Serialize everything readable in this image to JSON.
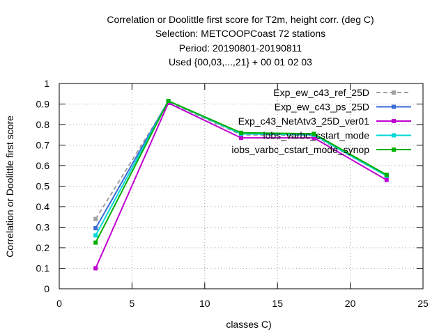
{
  "chart_data": {
    "type": "line",
    "title": [
      "Correlation or Doolittle first score  for T2m, height corr. (deg C)",
      "Selection: METCOOPCoast     72 stations",
      "Period: 20190801-20190811",
      "Used {00,03,...,21} + 00 01 02 03"
    ],
    "xlabel": "classes C)",
    "ylabel": "Correlation or Doolittle first score",
    "xlim": [
      0,
      25
    ],
    "ylim": [
      0,
      1
    ],
    "xticks": [
      0,
      5,
      10,
      15,
      20,
      25
    ],
    "yticks": [
      0,
      0.1,
      0.2,
      0.3,
      0.4,
      0.5,
      0.6,
      0.7,
      0.8,
      0.9,
      1
    ],
    "grid": true,
    "legend_position": "top-right",
    "x": [
      2.5,
      7.5,
      12.5,
      17.5,
      22.5
    ],
    "series": [
      {
        "name": "Exp_ew_c43_ref_25D",
        "color": "#a0a0a0",
        "dash": true,
        "values": [
          0.34,
          0.91,
          0.75,
          0.745,
          0.55
        ]
      },
      {
        "name": "Exp_ew_c43_ps_25D",
        "color": "#3b6bd6",
        "dash": false,
        "values": [
          0.295,
          0.915,
          0.755,
          0.75,
          0.55
        ]
      },
      {
        "name": "Exp_c43_NetAtv3_25D_ver01",
        "color": "#c000d0",
        "dash": false,
        "values": [
          0.1,
          0.905,
          0.735,
          0.735,
          0.53
        ]
      },
      {
        "name": "iobs_varbc_cstart_mode",
        "color": "#00d8d8",
        "dash": false,
        "values": [
          0.26,
          0.915,
          0.755,
          0.75,
          0.55
        ]
      },
      {
        "name": "iobs_varbc_cstart_mode_synop",
        "color": "#00b000",
        "dash": false,
        "values": [
          0.225,
          0.915,
          0.76,
          0.755,
          0.555
        ]
      }
    ]
  }
}
